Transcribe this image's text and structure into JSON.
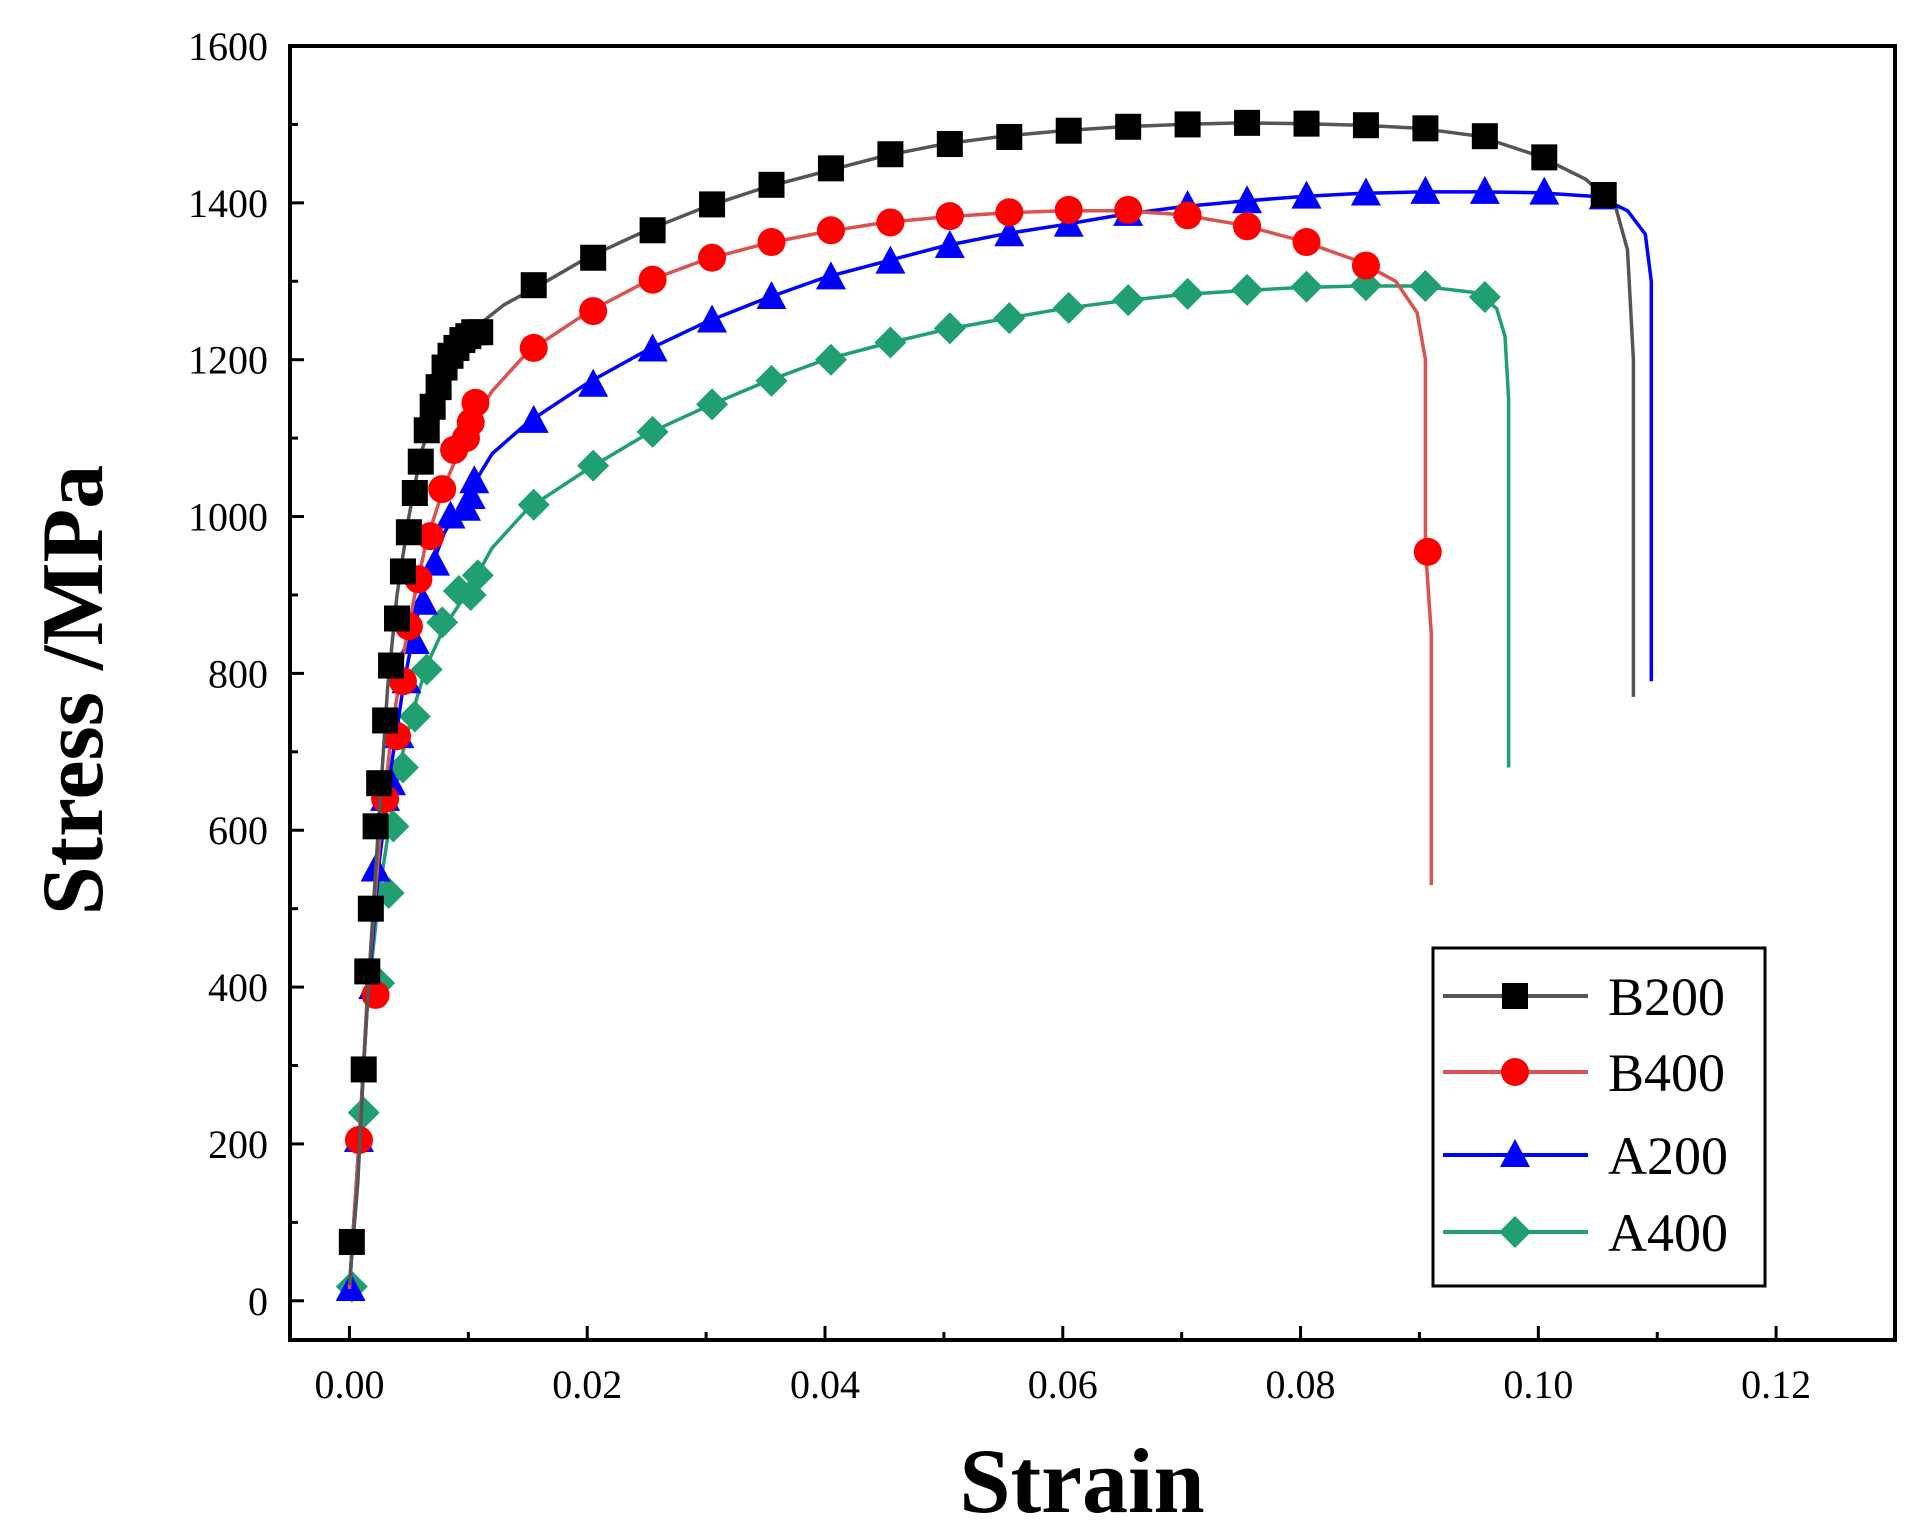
{
  "chart_data": {
    "type": "line",
    "title": "",
    "xlabel": "Strain",
    "ylabel": "Stress /MPa",
    "xlim": [
      -0.005,
      0.13
    ],
    "ylim": [
      -50,
      1600
    ],
    "xticks": [
      "0.00",
      "0.02",
      "0.04",
      "0.06",
      "0.08",
      "0.10",
      "0.12"
    ],
    "xtick_values": [
      0,
      0.02,
      0.04,
      0.06,
      0.08,
      0.1,
      0.12
    ],
    "yticks": [
      "0",
      "200",
      "400",
      "600",
      "800",
      "1000",
      "1200",
      "1400",
      "1600"
    ],
    "ytick_values": [
      0,
      200,
      400,
      600,
      800,
      1000,
      1200,
      1400,
      1600
    ],
    "grid": false,
    "legend_position": "bottom-right",
    "series": [
      {
        "name": "B200",
        "color": "#555555",
        "marker_color": "#000000",
        "marker": "square",
        "line": [
          [
            0,
            20
          ],
          [
            0.0007,
            150
          ],
          [
            0.0012,
            300
          ],
          [
            0.0018,
            450
          ],
          [
            0.0025,
            620
          ],
          [
            0.0032,
            780
          ],
          [
            0.004,
            900
          ],
          [
            0.005,
            1000
          ],
          [
            0.006,
            1080
          ],
          [
            0.0075,
            1150
          ],
          [
            0.009,
            1200
          ],
          [
            0.0105,
            1240
          ],
          [
            0.013,
            1270
          ],
          [
            0.016,
            1295
          ],
          [
            0.02,
            1330
          ],
          [
            0.025,
            1365
          ],
          [
            0.03,
            1395
          ],
          [
            0.035,
            1420
          ],
          [
            0.04,
            1440
          ],
          [
            0.045,
            1460
          ],
          [
            0.05,
            1475
          ],
          [
            0.055,
            1485
          ],
          [
            0.06,
            1492
          ],
          [
            0.065,
            1497
          ],
          [
            0.07,
            1500
          ],
          [
            0.075,
            1502
          ],
          [
            0.08,
            1501
          ],
          [
            0.085,
            1499
          ],
          [
            0.09,
            1495
          ],
          [
            0.095,
            1485
          ],
          [
            0.1,
            1460
          ],
          [
            0.104,
            1430
          ],
          [
            0.1065,
            1395
          ],
          [
            0.1075,
            1340
          ],
          [
            0.108,
            1200
          ],
          [
            0.108,
            770
          ]
        ],
        "markers": [
          [
            0.0002,
            75
          ],
          [
            0.0012,
            295
          ],
          [
            0.0015,
            420
          ],
          [
            0.0018,
            500
          ],
          [
            0.0022,
            605
          ],
          [
            0.0025,
            660
          ],
          [
            0.003,
            740
          ],
          [
            0.0035,
            810
          ],
          [
            0.004,
            870
          ],
          [
            0.0045,
            930
          ],
          [
            0.005,
            980
          ],
          [
            0.0055,
            1030
          ],
          [
            0.006,
            1070
          ],
          [
            0.0065,
            1110
          ],
          [
            0.007,
            1140
          ],
          [
            0.0075,
            1165
          ],
          [
            0.008,
            1190
          ],
          [
            0.0085,
            1205
          ],
          [
            0.009,
            1215
          ],
          [
            0.0095,
            1225
          ],
          [
            0.01,
            1230
          ],
          [
            0.0105,
            1235
          ],
          [
            0.011,
            1235
          ],
          [
            0.0155,
            1295
          ],
          [
            0.0205,
            1330
          ],
          [
            0.0255,
            1365
          ],
          [
            0.0305,
            1398
          ],
          [
            0.0355,
            1423
          ],
          [
            0.0405,
            1444
          ],
          [
            0.0455,
            1462
          ],
          [
            0.0505,
            1475
          ],
          [
            0.0555,
            1484
          ],
          [
            0.0605,
            1492
          ],
          [
            0.0655,
            1497
          ],
          [
            0.0705,
            1500
          ],
          [
            0.0755,
            1502
          ],
          [
            0.0805,
            1501
          ],
          [
            0.0855,
            1499
          ],
          [
            0.0905,
            1495
          ],
          [
            0.0955,
            1485
          ],
          [
            0.1005,
            1458
          ],
          [
            0.1055,
            1410
          ]
        ]
      },
      {
        "name": "B400",
        "color": "#d9534f",
        "marker_color": "#ff0000",
        "marker": "circle",
        "line": [
          [
            0,
            15
          ],
          [
            0.0008,
            200
          ],
          [
            0.0015,
            390
          ],
          [
            0.0025,
            580
          ],
          [
            0.0035,
            720
          ],
          [
            0.0045,
            820
          ],
          [
            0.0055,
            900
          ],
          [
            0.0065,
            970
          ],
          [
            0.008,
            1040
          ],
          [
            0.01,
            1110
          ],
          [
            0.012,
            1160
          ],
          [
            0.015,
            1210
          ],
          [
            0.02,
            1260
          ],
          [
            0.025,
            1300
          ],
          [
            0.03,
            1328
          ],
          [
            0.035,
            1348
          ],
          [
            0.04,
            1363
          ],
          [
            0.045,
            1375
          ],
          [
            0.05,
            1382
          ],
          [
            0.055,
            1387
          ],
          [
            0.06,
            1390
          ],
          [
            0.065,
            1390
          ],
          [
            0.07,
            1385
          ],
          [
            0.075,
            1372
          ],
          [
            0.08,
            1352
          ],
          [
            0.085,
            1325
          ],
          [
            0.088,
            1300
          ],
          [
            0.0898,
            1260
          ],
          [
            0.0905,
            1200
          ],
          [
            0.0905,
            960
          ],
          [
            0.091,
            850
          ],
          [
            0.091,
            530
          ]
        ],
        "markers": [
          [
            0.0008,
            205
          ],
          [
            0.0022,
            390
          ],
          [
            0.003,
            640
          ],
          [
            0.004,
            720
          ],
          [
            0.0045,
            790
          ],
          [
            0.005,
            860
          ],
          [
            0.0058,
            920
          ],
          [
            0.0068,
            975
          ],
          [
            0.0078,
            1035
          ],
          [
            0.0088,
            1085
          ],
          [
            0.0098,
            1100
          ],
          [
            0.0102,
            1120
          ],
          [
            0.0106,
            1145
          ],
          [
            0.0155,
            1215
          ],
          [
            0.0205,
            1262
          ],
          [
            0.0255,
            1302
          ],
          [
            0.0305,
            1330
          ],
          [
            0.0355,
            1350
          ],
          [
            0.0405,
            1365
          ],
          [
            0.0455,
            1375
          ],
          [
            0.0505,
            1383
          ],
          [
            0.0555,
            1388
          ],
          [
            0.0605,
            1391
          ],
          [
            0.0655,
            1391
          ],
          [
            0.0705,
            1384
          ],
          [
            0.0755,
            1370
          ],
          [
            0.0805,
            1350
          ],
          [
            0.0855,
            1320
          ],
          [
            0.0907,
            955
          ]
        ]
      },
      {
        "name": "A200",
        "color": "#0000ff",
        "marker_color": "#0000ff",
        "marker": "triangle",
        "line": [
          [
            0,
            15
          ],
          [
            0.0008,
            200
          ],
          [
            0.0015,
            380
          ],
          [
            0.0025,
            560
          ],
          [
            0.0035,
            680
          ],
          [
            0.0045,
            780
          ],
          [
            0.0055,
            860
          ],
          [
            0.0065,
            920
          ],
          [
            0.008,
            980
          ],
          [
            0.01,
            1030
          ],
          [
            0.012,
            1080
          ],
          [
            0.015,
            1120
          ],
          [
            0.02,
            1170
          ],
          [
            0.025,
            1212
          ],
          [
            0.03,
            1248
          ],
          [
            0.035,
            1278
          ],
          [
            0.04,
            1305
          ],
          [
            0.045,
            1325
          ],
          [
            0.05,
            1345
          ],
          [
            0.055,
            1360
          ],
          [
            0.06,
            1372
          ],
          [
            0.065,
            1385
          ],
          [
            0.07,
            1395
          ],
          [
            0.075,
            1402
          ],
          [
            0.08,
            1408
          ],
          [
            0.085,
            1412
          ],
          [
            0.09,
            1414
          ],
          [
            0.095,
            1414
          ],
          [
            0.1,
            1413
          ],
          [
            0.105,
            1408
          ],
          [
            0.1075,
            1390
          ],
          [
            0.109,
            1360
          ],
          [
            0.1095,
            1300
          ],
          [
            0.1095,
            790
          ]
        ],
        "markers": [
          [
            0.0001,
            15
          ],
          [
            0.0008,
            205
          ],
          [
            0.002,
            400
          ],
          [
            0.0022,
            550
          ],
          [
            0.003,
            640
          ],
          [
            0.0035,
            660
          ],
          [
            0.0042,
            720
          ],
          [
            0.0048,
            790
          ],
          [
            0.0055,
            840
          ],
          [
            0.0062,
            890
          ],
          [
            0.0072,
            940
          ],
          [
            0.0085,
            1000
          ],
          [
            0.0098,
            1010
          ],
          [
            0.0102,
            1025
          ],
          [
            0.0105,
            1045
          ],
          [
            0.0155,
            1122
          ],
          [
            0.0205,
            1168
          ],
          [
            0.0255,
            1213
          ],
          [
            0.0305,
            1250
          ],
          [
            0.0355,
            1280
          ],
          [
            0.0405,
            1305
          ],
          [
            0.0455,
            1325
          ],
          [
            0.0505,
            1345
          ],
          [
            0.0555,
            1360
          ],
          [
            0.0605,
            1372
          ],
          [
            0.0655,
            1386
          ],
          [
            0.0705,
            1396
          ],
          [
            0.0755,
            1402
          ],
          [
            0.0805,
            1408
          ],
          [
            0.0855,
            1412
          ],
          [
            0.0905,
            1414
          ],
          [
            0.0955,
            1414
          ],
          [
            0.1005,
            1413
          ],
          [
            0.1055,
            1407
          ]
        ]
      },
      {
        "name": "A400",
        "color": "#20a070",
        "marker_color": "#20a070",
        "marker": "diamond",
        "line": [
          [
            0,
            15
          ],
          [
            0.0008,
            200
          ],
          [
            0.0015,
            380
          ],
          [
            0.0025,
            520
          ],
          [
            0.0035,
            620
          ],
          [
            0.0045,
            700
          ],
          [
            0.0055,
            760
          ],
          [
            0.0065,
            810
          ],
          [
            0.008,
            860
          ],
          [
            0.01,
            905
          ],
          [
            0.012,
            960
          ],
          [
            0.015,
            1010
          ],
          [
            0.02,
            1060
          ],
          [
            0.025,
            1105
          ],
          [
            0.03,
            1140
          ],
          [
            0.035,
            1172
          ],
          [
            0.04,
            1200
          ],
          [
            0.045,
            1220
          ],
          [
            0.05,
            1238
          ],
          [
            0.055,
            1252
          ],
          [
            0.06,
            1265
          ],
          [
            0.065,
            1275
          ],
          [
            0.07,
            1283
          ],
          [
            0.075,
            1288
          ],
          [
            0.08,
            1292
          ],
          [
            0.085,
            1294
          ],
          [
            0.09,
            1294
          ],
          [
            0.095,
            1285
          ],
          [
            0.0965,
            1265
          ],
          [
            0.0972,
            1230
          ],
          [
            0.0975,
            1150
          ],
          [
            0.0975,
            680
          ]
        ],
        "markers": [
          [
            0.0002,
            18
          ],
          [
            0.0012,
            240
          ],
          [
            0.0025,
            405
          ],
          [
            0.0033,
            520
          ],
          [
            0.0037,
            605
          ],
          [
            0.0045,
            680
          ],
          [
            0.0055,
            745
          ],
          [
            0.0065,
            805
          ],
          [
            0.0078,
            865
          ],
          [
            0.0092,
            905
          ],
          [
            0.0102,
            900
          ],
          [
            0.0108,
            925
          ],
          [
            0.0155,
            1015
          ],
          [
            0.0205,
            1065
          ],
          [
            0.0255,
            1108
          ],
          [
            0.0305,
            1143
          ],
          [
            0.0355,
            1173
          ],
          [
            0.0405,
            1200
          ],
          [
            0.0455,
            1222
          ],
          [
            0.0505,
            1240
          ],
          [
            0.0555,
            1253
          ],
          [
            0.0605,
            1266
          ],
          [
            0.0655,
            1276
          ],
          [
            0.0705,
            1284
          ],
          [
            0.0755,
            1289
          ],
          [
            0.0805,
            1293
          ],
          [
            0.0855,
            1295
          ],
          [
            0.0905,
            1294
          ],
          [
            0.0955,
            1280
          ]
        ]
      }
    ]
  }
}
